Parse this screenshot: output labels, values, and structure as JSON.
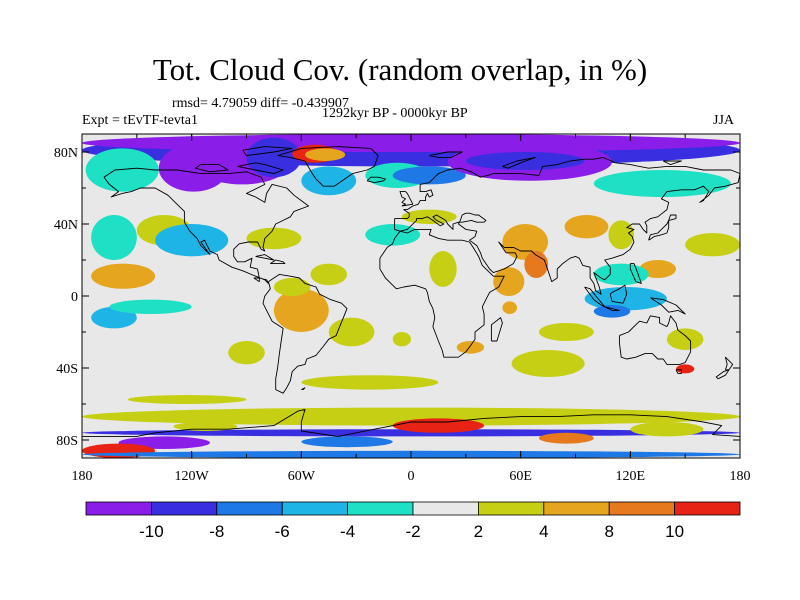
{
  "title": "Tot. Cloud Cov. (random overlap, in %)",
  "stats": "rmsd= 4.79059 diff= -0.439907",
  "period": "1292kyr BP - 0000kyr BP",
  "experiment": "Expt = tEvTF-tevta1",
  "season": "JJA",
  "map": {
    "lon_ticks": [
      "180",
      "120W",
      "60W",
      "0",
      "60E",
      "120E",
      "180"
    ],
    "lat_ticks": [
      "80N",
      "40N",
      "0",
      "40S",
      "80S"
    ],
    "lon_values": [
      -180,
      -120,
      -60,
      0,
      60,
      120,
      180
    ],
    "lat_values": [
      80,
      40,
      0,
      -40,
      -80
    ],
    "lon_range": [
      -180,
      180
    ],
    "lat_range": [
      -90,
      90
    ],
    "background_color": "#e8e8e8",
    "coast_color": "#000000"
  },
  "colorbar": {
    "labels": [
      "-10",
      "-8",
      "-6",
      "-4",
      "-2",
      "2",
      "4",
      "8",
      "10"
    ],
    "colors": [
      "#8a1ee8",
      "#3a2fe0",
      "#1e78e6",
      "#1eb4e6",
      "#1ee0c4",
      "#e8e8e8",
      "#c6cf14",
      "#e6a51e",
      "#e6781e",
      "#e62314"
    ]
  }
}
